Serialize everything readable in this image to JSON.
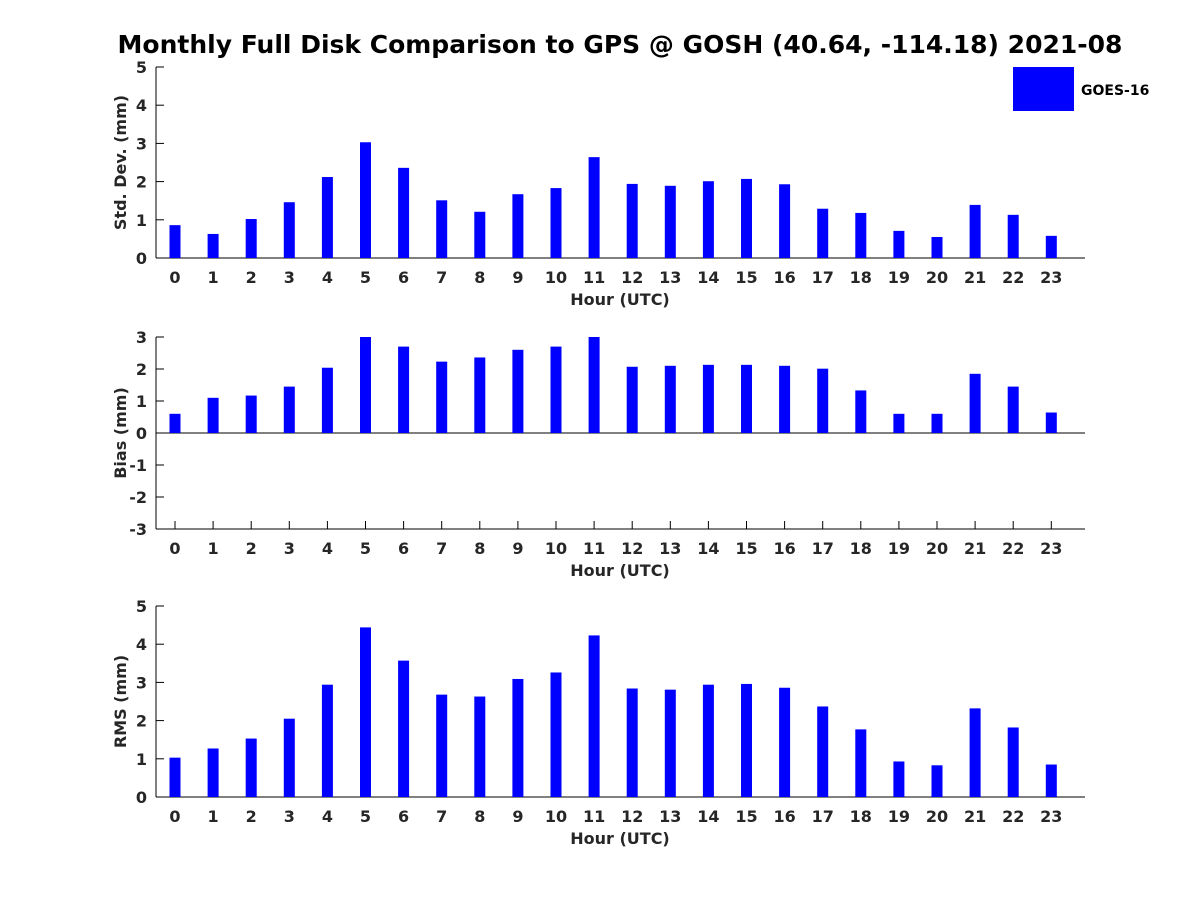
{
  "title": "Monthly Full Disk Comparison to GPS @ GOSH (40.64, -114.18) 2021-08",
  "legend": {
    "label": "GOES-16",
    "color": "#0000ff"
  },
  "bar_color": "#0000ff",
  "chart_data": [
    {
      "type": "bar",
      "xlabel": "Hour (UTC)",
      "ylabel": "Std. Dev. (mm)",
      "ylim": [
        0,
        5
      ],
      "yticks": [
        "0",
        "1",
        "2",
        "3",
        "4",
        "5"
      ],
      "categories": [
        "0",
        "1",
        "2",
        "3",
        "4",
        "5",
        "6",
        "7",
        "8",
        "9",
        "10",
        "11",
        "12",
        "13",
        "14",
        "15",
        "16",
        "17",
        "18",
        "19",
        "20",
        "21",
        "22",
        "23"
      ],
      "series": [
        {
          "name": "GOES-16",
          "values": [
            0.86,
            0.63,
            1.02,
            1.46,
            2.12,
            3.03,
            2.36,
            1.51,
            1.21,
            1.67,
            1.83,
            2.64,
            1.94,
            1.89,
            2.01,
            2.07,
            1.93,
            1.29,
            1.18,
            0.71,
            0.55,
            1.39,
            1.13,
            0.58
          ]
        }
      ]
    },
    {
      "type": "bar",
      "xlabel": "Hour (UTC)",
      "ylabel": "Bias (mm)",
      "ylim": [
        -3,
        3
      ],
      "yticks": [
        "-3",
        "-2",
        "-1",
        "0",
        "1",
        "2",
        "3"
      ],
      "categories": [
        "0",
        "1",
        "2",
        "3",
        "4",
        "5",
        "6",
        "7",
        "8",
        "9",
        "10",
        "11",
        "12",
        "13",
        "14",
        "15",
        "16",
        "17",
        "18",
        "19",
        "20",
        "21",
        "22",
        "23"
      ],
      "series": [
        {
          "name": "GOES-16",
          "values": [
            0.6,
            1.1,
            1.17,
            1.45,
            2.04,
            3.0,
            2.7,
            2.23,
            2.36,
            2.6,
            2.7,
            3.0,
            2.07,
            2.1,
            2.13,
            2.13,
            2.1,
            2.01,
            1.33,
            0.6,
            0.6,
            1.85,
            1.45,
            0.64
          ]
        }
      ]
    },
    {
      "type": "bar",
      "xlabel": "Hour (UTC)",
      "ylabel": "RMS (mm)",
      "ylim": [
        0,
        5
      ],
      "yticks": [
        "0",
        "1",
        "2",
        "3",
        "4",
        "5"
      ],
      "categories": [
        "0",
        "1",
        "2",
        "3",
        "4",
        "5",
        "6",
        "7",
        "8",
        "9",
        "10",
        "11",
        "12",
        "13",
        "14",
        "15",
        "16",
        "17",
        "18",
        "19",
        "20",
        "21",
        "22",
        "23"
      ],
      "series": [
        {
          "name": "GOES-16",
          "values": [
            1.03,
            1.27,
            1.53,
            2.05,
            2.94,
            4.44,
            3.57,
            2.68,
            2.63,
            3.09,
            3.26,
            4.23,
            2.84,
            2.81,
            2.94,
            2.96,
            2.86,
            2.37,
            1.77,
            0.93,
            0.83,
            2.32,
            1.82,
            0.85
          ]
        }
      ]
    }
  ]
}
